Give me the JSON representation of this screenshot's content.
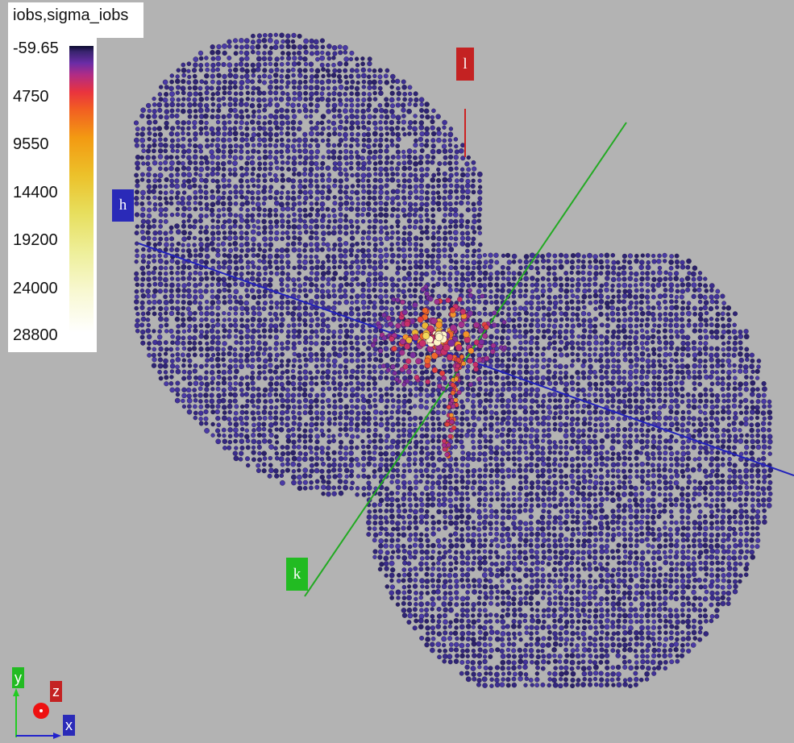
{
  "legend": {
    "title": "iobs,sigma_iobs",
    "ticks": [
      "-59.65",
      "4750",
      "9550",
      "14400",
      "19200",
      "24000",
      "28800"
    ]
  },
  "axes": {
    "h_label": "h",
    "k_label": "k",
    "l_label": "l"
  },
  "triad": {
    "x_label": "x",
    "y_label": "y",
    "z_label": "z"
  },
  "colors": {
    "background": "#b3b3b3",
    "h_axis": "#2222bb",
    "k_axis": "#22bb22",
    "l_axis": "#cc2222",
    "low_value": "#3a2c8c",
    "high_value": "#ffffff"
  },
  "chart_data": {
    "type": "scatter",
    "title": "iobs,sigma_iobs",
    "color_range": [
      -59.65,
      28800
    ],
    "colorbar_ticks": [
      -59.65,
      4750,
      9550,
      14400,
      19200,
      24000,
      28800
    ],
    "axes_3d": [
      "h",
      "k",
      "l"
    ],
    "description_note": "3D reciprocal-space reflection cloud; most points low intensity, high-intensity points near origin"
  }
}
